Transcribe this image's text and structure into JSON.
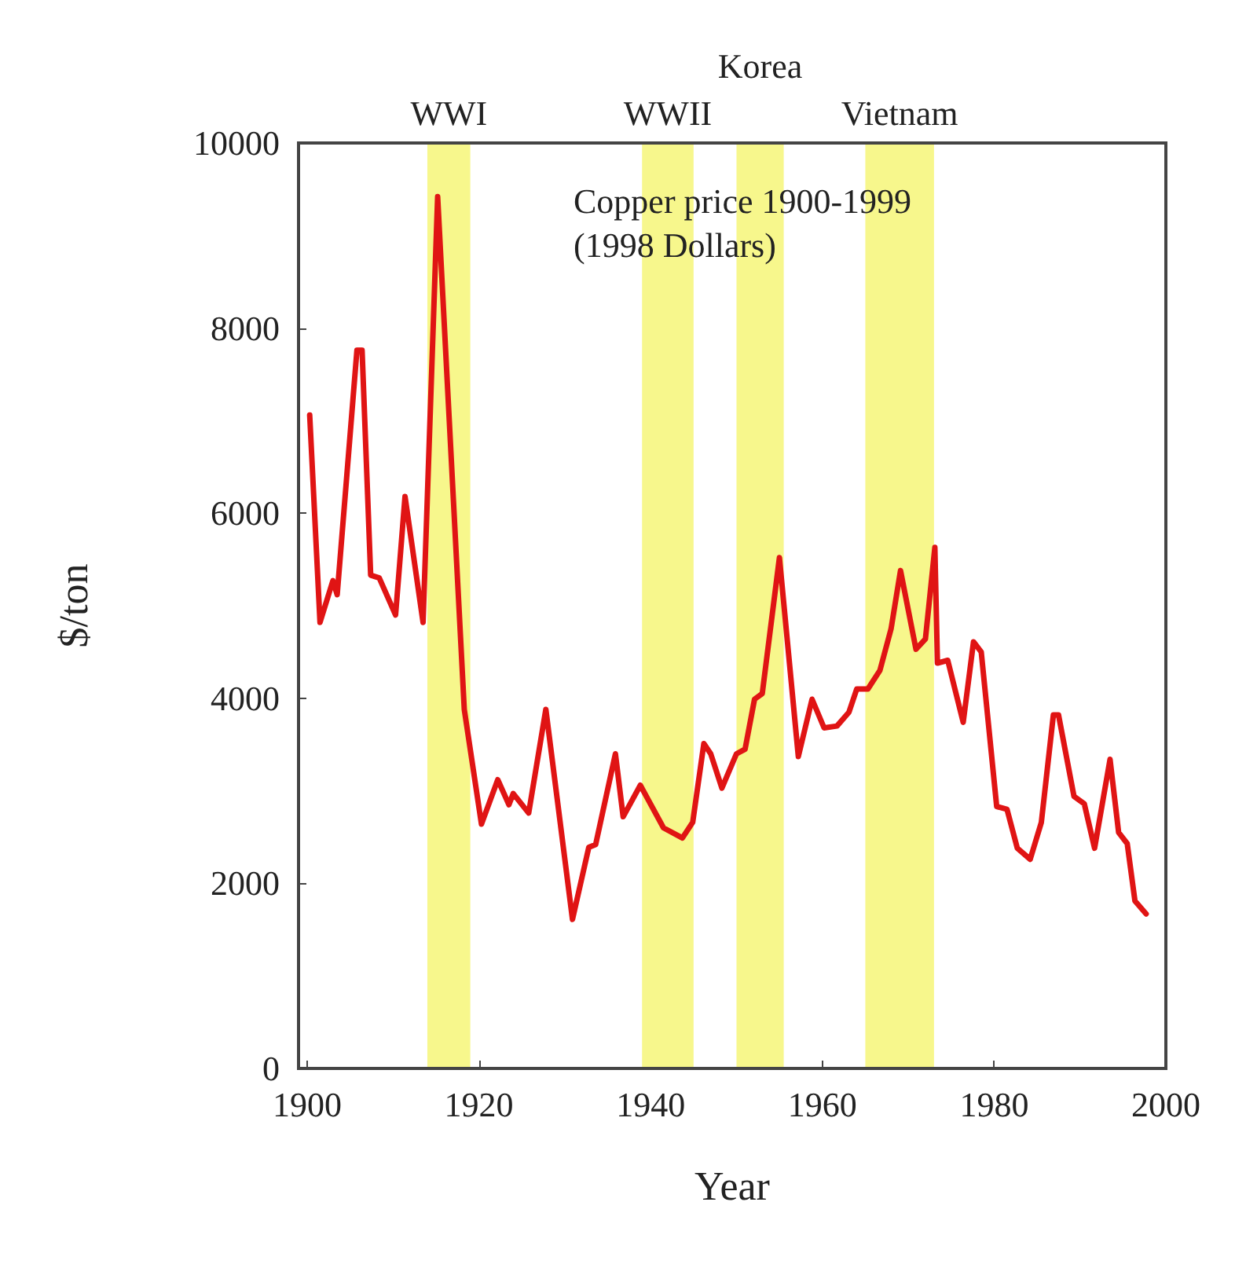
{
  "chart_data": {
    "type": "line",
    "title": "Copper price 1900-1999",
    "subtitle": "(1998 Dollars)",
    "xlabel": "Year",
    "ylabel": "$/ton",
    "x": [
      1900.3,
      1901.5,
      1903,
      1903.5,
      1905.8,
      1906.4,
      1907.4,
      1908.4,
      1910.3,
      1911.4,
      1913.5,
      1915.2,
      1918.3,
      1920.3,
      1922.2,
      1923.5,
      1924,
      1925.8,
      1927.8,
      1930.9,
      1932.8,
      1933.6,
      1935.9,
      1936.8,
      1938.8,
      1941.5,
      1943.7,
      1944.9,
      1946.2,
      1947,
      1948.3,
      1950,
      1951,
      1952.1,
      1953,
      1955,
      1957.2,
      1958.8,
      1960.2,
      1961.7,
      1963.1,
      1964,
      1965.3,
      1966.7,
      1968,
      1969.1,
      1970.9,
      1972,
      1973.1,
      1973.4,
      1974.6,
      1976.4,
      1977.6,
      1978.5,
      1980.3,
      1981.5,
      1982.7,
      1984.2,
      1985.5,
      1986.9,
      1987.5,
      1989.3,
      1990.5,
      1991.7,
      1993.5,
      1994.5,
      1995.5,
      1996.4,
      1997.7
    ],
    "series": [
      {
        "color": "#e01414",
        "values": [
          7060,
          4820,
          5270,
          5120,
          7760,
          7760,
          5330,
          5300,
          4900,
          6180,
          4820,
          9420,
          3880,
          2640,
          3120,
          2850,
          2970,
          2760,
          3880,
          1610,
          2390,
          2420,
          3400,
          2720,
          3060,
          2600,
          2490,
          2660,
          3510,
          3400,
          3030,
          3400,
          3450,
          3990,
          4050,
          5520,
          3370,
          3990,
          3680,
          3700,
          3850,
          4100,
          4100,
          4300,
          4750,
          5380,
          4530,
          4640,
          5630,
          4380,
          4410,
          3740,
          4610,
          4500,
          2830,
          2800,
          2380,
          2260,
          2660,
          3820,
          3820,
          2940,
          2860,
          2380,
          3340,
          2550,
          2430,
          1810,
          1670
        ]
      }
    ],
    "xlim": [
      1899,
      2000
    ],
    "xticks": [
      1900,
      1920,
      1940,
      1960,
      1980,
      2000
    ],
    "ylim": [
      0,
      10000
    ],
    "yticks": [
      0,
      2000,
      4000,
      6000,
      8000,
      10000
    ],
    "grid": false,
    "marker": "none",
    "line_style": "solid",
    "bands": [
      {
        "axis": "x",
        "from": 1914,
        "to": 1919,
        "label": "WWI",
        "color": "#f7f78c"
      },
      {
        "axis": "x",
        "from": 1939,
        "to": 1945,
        "label": "WWII",
        "color": "#f7f78c"
      },
      {
        "axis": "x",
        "from": 1950,
        "to": 1955.5,
        "label": "Korea",
        "color": "#f7f78c"
      },
      {
        "axis": "x",
        "from": 1965,
        "to": 1973,
        "label": "Vietnam",
        "color": "#f7f78c"
      }
    ]
  }
}
